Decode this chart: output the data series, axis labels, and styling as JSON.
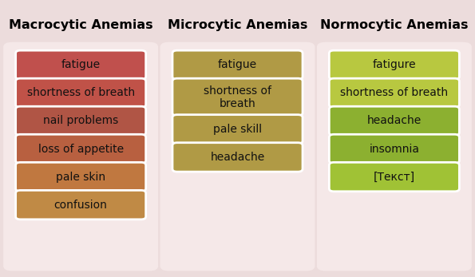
{
  "background_color": "#ecdcdc",
  "panel_facecolor": "#f5e8e8",
  "columns": [
    {
      "title": "Macrocytic Anemias",
      "items": [
        "fatigue",
        "shortness of breath",
        "nail problems",
        "loss of appetite",
        "pale skin",
        "confusion"
      ],
      "box_colors": [
        "#c0504d",
        "#c05248",
        "#b05545",
        "#b86040",
        "#c07840",
        "#c08a45"
      ],
      "text_color": "#111111"
    },
    {
      "title": "Microcytic Anemias",
      "items": [
        "fatigue",
        "shortness of\nbreath",
        "pale skill",
        "headache"
      ],
      "box_colors": [
        "#b09a45",
        "#b09a45",
        "#b09a45",
        "#b09a45"
      ],
      "text_color": "#111111"
    },
    {
      "title": "Normocytic Anemias",
      "items": [
        "fatigure",
        "shortness of breath",
        "headache",
        "insomnia",
        "[Текст]"
      ],
      "box_colors": [
        "#b8c840",
        "#b8c840",
        "#8cb030",
        "#8cb030",
        "#a0c235"
      ],
      "text_color": "#111111"
    }
  ],
  "title_fontsize": 11.5,
  "item_fontsize": 10,
  "fig_width": 5.95,
  "fig_height": 3.47,
  "dpi": 100
}
